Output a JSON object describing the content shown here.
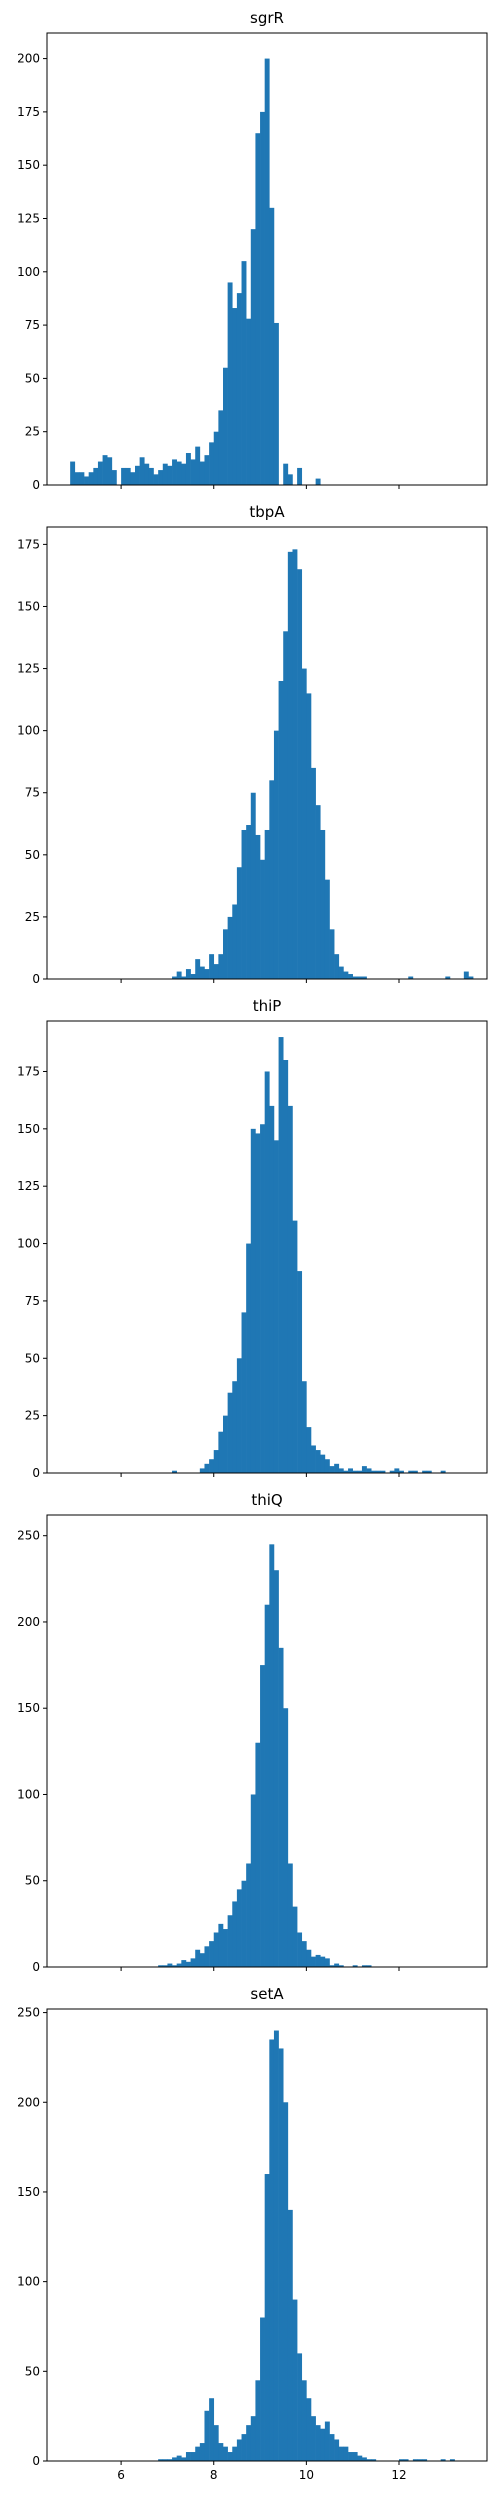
{
  "colors": {
    "bar": "#1f77b4",
    "axes": "#000000",
    "background": "#ffffff"
  },
  "shared_x": {
    "xlim": [
      4.4,
      13.9
    ],
    "ticks": [
      6,
      8,
      10,
      12
    ],
    "tick_labels": [
      "6",
      "8",
      "10",
      "12"
    ],
    "labels_on": "bottom-panel-only"
  },
  "chart_data": [
    {
      "type": "bar",
      "title": "sgrR",
      "xlabel": "",
      "ylabel": "",
      "xlim": [
        4.4,
        13.9
      ],
      "ylim": [
        0,
        212
      ],
      "yticks": [
        0,
        25,
        50,
        75,
        100,
        125,
        150,
        175,
        200
      ],
      "grid": false,
      "bin_width": 0.1,
      "x": [
        4.95,
        5.05,
        5.15,
        5.25,
        5.35,
        5.45,
        5.55,
        5.65,
        5.75,
        5.85,
        5.95,
        6.05,
        6.15,
        6.25,
        6.35,
        6.45,
        6.55,
        6.65,
        6.75,
        6.85,
        6.95,
        7.05,
        7.15,
        7.25,
        7.35,
        7.45,
        7.55,
        7.65,
        7.75,
        7.85,
        7.95,
        8.05,
        8.15,
        8.25,
        8.35,
        8.45,
        8.55,
        8.65,
        8.75,
        8.85,
        8.95,
        9.05,
        9.15,
        9.25,
        9.35,
        9.45,
        9.55,
        9.65,
        9.75,
        9.85,
        9.95,
        10.05,
        10.15,
        10.25,
        10.35
      ],
      "values": [
        11,
        6,
        6,
        4,
        6,
        8,
        11,
        14,
        13,
        7,
        0,
        8,
        8,
        6,
        9,
        13,
        10,
        8,
        5,
        7,
        10,
        9,
        12,
        11,
        10,
        15,
        12,
        18,
        11,
        14,
        20,
        25,
        35,
        55,
        95,
        83,
        90,
        105,
        78,
        120,
        165,
        175,
        200,
        130,
        76,
        0,
        10,
        5,
        0,
        8,
        0,
        0,
        0,
        3,
        0
      ]
    },
    {
      "type": "bar",
      "title": "tbpA",
      "xlabel": "",
      "ylabel": "",
      "xlim": [
        4.4,
        13.9
      ],
      "ylim": [
        0,
        182
      ],
      "yticks": [
        0,
        25,
        50,
        75,
        100,
        125,
        150,
        175
      ],
      "grid": false,
      "bin_width": 0.1,
      "x": [
        7.15,
        7.25,
        7.35,
        7.45,
        7.55,
        7.65,
        7.75,
        7.85,
        7.95,
        8.05,
        8.15,
        8.25,
        8.35,
        8.45,
        8.55,
        8.65,
        8.75,
        8.85,
        8.95,
        9.05,
        9.15,
        9.25,
        9.35,
        9.45,
        9.55,
        9.65,
        9.75,
        9.85,
        9.95,
        10.05,
        10.15,
        10.25,
        10.35,
        10.45,
        10.55,
        10.65,
        10.75,
        10.85,
        10.95,
        11.05,
        11.15,
        11.25,
        11.35,
        11.45,
        11.55,
        11.65,
        11.75,
        11.85,
        11.95,
        12.05,
        12.15,
        12.25,
        12.35,
        12.45,
        12.55,
        12.65,
        12.75,
        12.85,
        12.95,
        13.05,
        13.15,
        13.25,
        13.35,
        13.45,
        13.55
      ],
      "values": [
        1,
        3,
        1,
        4,
        2,
        8,
        5,
        4,
        10,
        6,
        10,
        20,
        25,
        30,
        45,
        60,
        62,
        75,
        58,
        48,
        60,
        80,
        100,
        120,
        140,
        172,
        173,
        165,
        125,
        115,
        85,
        70,
        60,
        40,
        20,
        10,
        5,
        3,
        2,
        1,
        1,
        1,
        0,
        0,
        0,
        0,
        0,
        0,
        0,
        0,
        0,
        1,
        0,
        0,
        0,
        0,
        0,
        0,
        0,
        1,
        0,
        0,
        0,
        3,
        1
      ]
    },
    {
      "type": "bar",
      "title": "thiP",
      "xlabel": "",
      "ylabel": "",
      "xlim": [
        4.4,
        13.9
      ],
      "ylim": [
        0,
        197
      ],
      "yticks": [
        0,
        25,
        50,
        75,
        100,
        125,
        150,
        175
      ],
      "grid": false,
      "bin_width": 0.1,
      "x": [
        7.15,
        7.25,
        7.35,
        7.45,
        7.55,
        7.65,
        7.75,
        7.85,
        7.95,
        8.05,
        8.15,
        8.25,
        8.35,
        8.45,
        8.55,
        8.65,
        8.75,
        8.85,
        8.95,
        9.05,
        9.15,
        9.25,
        9.35,
        9.45,
        9.55,
        9.65,
        9.75,
        9.85,
        9.95,
        10.05,
        10.15,
        10.25,
        10.35,
        10.45,
        10.55,
        10.65,
        10.75,
        10.85,
        10.95,
        11.05,
        11.15,
        11.25,
        11.35,
        11.45,
        11.55,
        11.65,
        11.75,
        11.85,
        11.95,
        12.05,
        12.15,
        12.25,
        12.35,
        12.45,
        12.55,
        12.65,
        12.75,
        12.85,
        12.95
      ],
      "values": [
        1,
        0,
        0,
        0,
        0,
        0,
        2,
        4,
        6,
        10,
        18,
        25,
        35,
        40,
        50,
        70,
        100,
        150,
        148,
        152,
        175,
        160,
        145,
        190,
        180,
        160,
        110,
        88,
        40,
        20,
        12,
        10,
        8,
        6,
        3,
        4,
        2,
        1,
        2,
        1,
        1,
        3,
        2,
        1,
        1,
        1,
        0,
        1,
        2,
        1,
        0,
        1,
        1,
        0,
        1,
        1,
        0,
        0,
        1
      ]
    },
    {
      "type": "bar",
      "title": "thiQ",
      "xlabel": "",
      "ylabel": "",
      "xlim": [
        4.4,
        13.9
      ],
      "ylim": [
        0,
        262
      ],
      "yticks": [
        0,
        50,
        100,
        150,
        200,
        250
      ],
      "grid": false,
      "bin_width": 0.1,
      "x": [
        6.85,
        6.95,
        7.05,
        7.15,
        7.25,
        7.35,
        7.45,
        7.55,
        7.65,
        7.75,
        7.85,
        7.95,
        8.05,
        8.15,
        8.25,
        8.35,
        8.45,
        8.55,
        8.65,
        8.75,
        8.85,
        8.95,
        9.05,
        9.15,
        9.25,
        9.35,
        9.45,
        9.55,
        9.65,
        9.75,
        9.85,
        9.95,
        10.05,
        10.15,
        10.25,
        10.35,
        10.45,
        10.55,
        10.65,
        10.75,
        10.85,
        10.95,
        11.05,
        11.15,
        11.25,
        11.35
      ],
      "values": [
        1,
        1,
        2,
        1,
        2,
        4,
        3,
        5,
        10,
        8,
        12,
        15,
        20,
        25,
        22,
        30,
        38,
        45,
        50,
        60,
        100,
        130,
        175,
        210,
        245,
        230,
        185,
        150,
        60,
        35,
        20,
        15,
        10,
        6,
        7,
        6,
        5,
        1,
        2,
        1,
        0,
        0,
        1,
        0,
        1,
        1
      ]
    },
    {
      "type": "bar",
      "title": "setA",
      "xlabel": "",
      "ylabel": "",
      "xlim": [
        4.4,
        13.9
      ],
      "ylim": [
        0,
        252
      ],
      "yticks": [
        0,
        50,
        100,
        150,
        200,
        250
      ],
      "grid": false,
      "bin_width": 0.1,
      "x": [
        6.85,
        6.95,
        7.05,
        7.15,
        7.25,
        7.35,
        7.45,
        7.55,
        7.65,
        7.75,
        7.85,
        7.95,
        8.05,
        8.15,
        8.25,
        8.35,
        8.45,
        8.55,
        8.65,
        8.75,
        8.85,
        8.95,
        9.05,
        9.15,
        9.25,
        9.35,
        9.45,
        9.55,
        9.65,
        9.75,
        9.85,
        9.95,
        10.05,
        10.15,
        10.25,
        10.35,
        10.45,
        10.55,
        10.65,
        10.75,
        10.85,
        10.95,
        11.05,
        11.15,
        11.25,
        11.35,
        11.45,
        11.55,
        11.65,
        11.75,
        11.85,
        11.95,
        12.05,
        12.15,
        12.25,
        12.35,
        12.45,
        12.55,
        12.65,
        12.75,
        12.85,
        12.95,
        13.05,
        13.15
      ],
      "values": [
        1,
        1,
        1,
        2,
        3,
        2,
        5,
        5,
        8,
        10,
        28,
        35,
        20,
        10,
        8,
        5,
        8,
        12,
        15,
        20,
        25,
        45,
        80,
        160,
        235,
        240,
        230,
        200,
        140,
        90,
        60,
        45,
        35,
        25,
        20,
        18,
        22,
        15,
        12,
        8,
        8,
        5,
        5,
        3,
        2,
        1,
        1,
        0,
        0,
        0,
        0,
        0,
        1,
        1,
        0,
        1,
        1,
        1,
        0,
        0,
        0,
        1,
        0,
        1
      ]
    }
  ]
}
